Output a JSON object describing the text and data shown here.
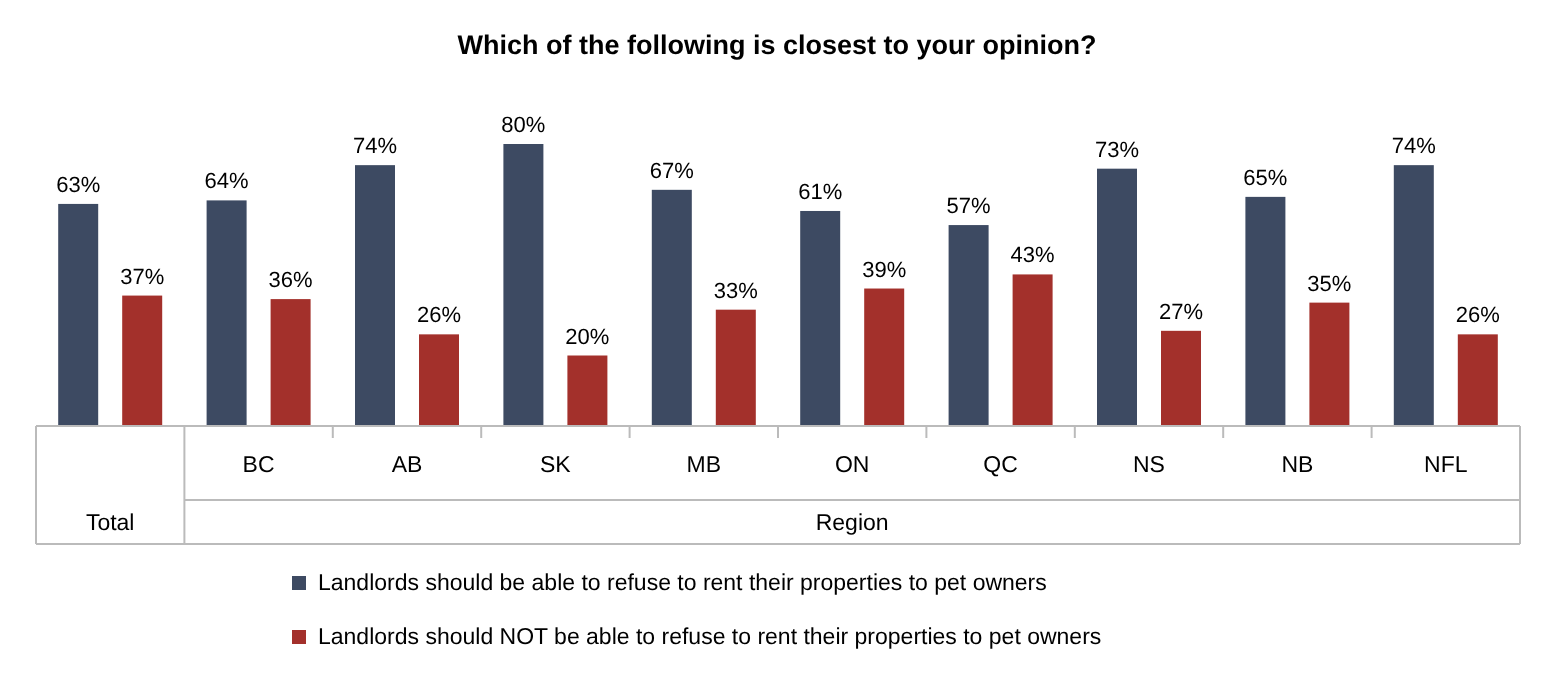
{
  "chart_data": {
    "type": "bar",
    "title": "Which of the following is closest to your opinion?",
    "categories": [
      null,
      "BC",
      "AB",
      "SK",
      "MB",
      "ON",
      "QC",
      "NS",
      "NB",
      "NFL"
    ],
    "series": [
      {
        "name": "Landlords should be able to refuse to rent their properties to pet owners",
        "color": "#3d4a62",
        "values": [
          63,
          64,
          74,
          80,
          67,
          61,
          57,
          73,
          65,
          74
        ],
        "value_labels": [
          "63%",
          "64%",
          "74%",
          "80%",
          "67%",
          "61%",
          "57%",
          "73%",
          "65%",
          "74%"
        ]
      },
      {
        "name": "Landlords should NOT be able to refuse to rent their properties to pet owners",
        "color": "#a3302b",
        "values": [
          37,
          36,
          26,
          20,
          33,
          39,
          43,
          27,
          35,
          26
        ],
        "value_labels": [
          "37%",
          "36%",
          "26%",
          "20%",
          "33%",
          "39%",
          "43%",
          "27%",
          "35%",
          "26%"
        ]
      }
    ],
    "legend": "bottom",
    "annotations": [
      "Total",
      "Region"
    ]
  }
}
